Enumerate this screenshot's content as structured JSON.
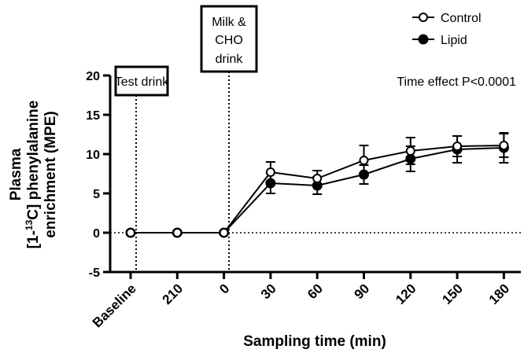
{
  "chart_data": {
    "type": "line",
    "categories": [
      "Baseline",
      "210",
      "0",
      "30",
      "60",
      "90",
      "120",
      "150",
      "180"
    ],
    "series": [
      {
        "name": "Control",
        "marker": "open-circle",
        "values": [
          0,
          0,
          0,
          7.7,
          6.9,
          9.2,
          10.4,
          11.0,
          11.1
        ],
        "error": [
          0.2,
          0.2,
          0.2,
          1.3,
          1.0,
          1.9,
          1.7,
          1.3,
          1.5
        ]
      },
      {
        "name": "Lipid",
        "marker": "filled-circle",
        "values": [
          0,
          0,
          0,
          6.3,
          6.0,
          7.4,
          9.4,
          10.6,
          10.8
        ],
        "error": [
          0.2,
          0.2,
          0.2,
          1.3,
          1.1,
          1.2,
          1.6,
          1.7,
          1.9
        ]
      }
    ],
    "xlabel": "Sampling time (min)",
    "ylabel_lines": [
      "Plasma",
      "phenylalanine",
      "enrichment (MPE)"
    ],
    "ylabel_isotope": {
      "prefix": "[1-",
      "superscript": "13",
      "suffix": "C]"
    },
    "yticks": [
      -5,
      0,
      5,
      10,
      15,
      20
    ],
    "ylim": [
      -5,
      20
    ],
    "annotations": {
      "test_drink": "Test drink",
      "milk_drink_lines": [
        "Milk &",
        "CHO",
        "drink"
      ],
      "time_effect": "Time effect P<0.0001"
    },
    "grid": false,
    "legend_position": "top-right"
  }
}
